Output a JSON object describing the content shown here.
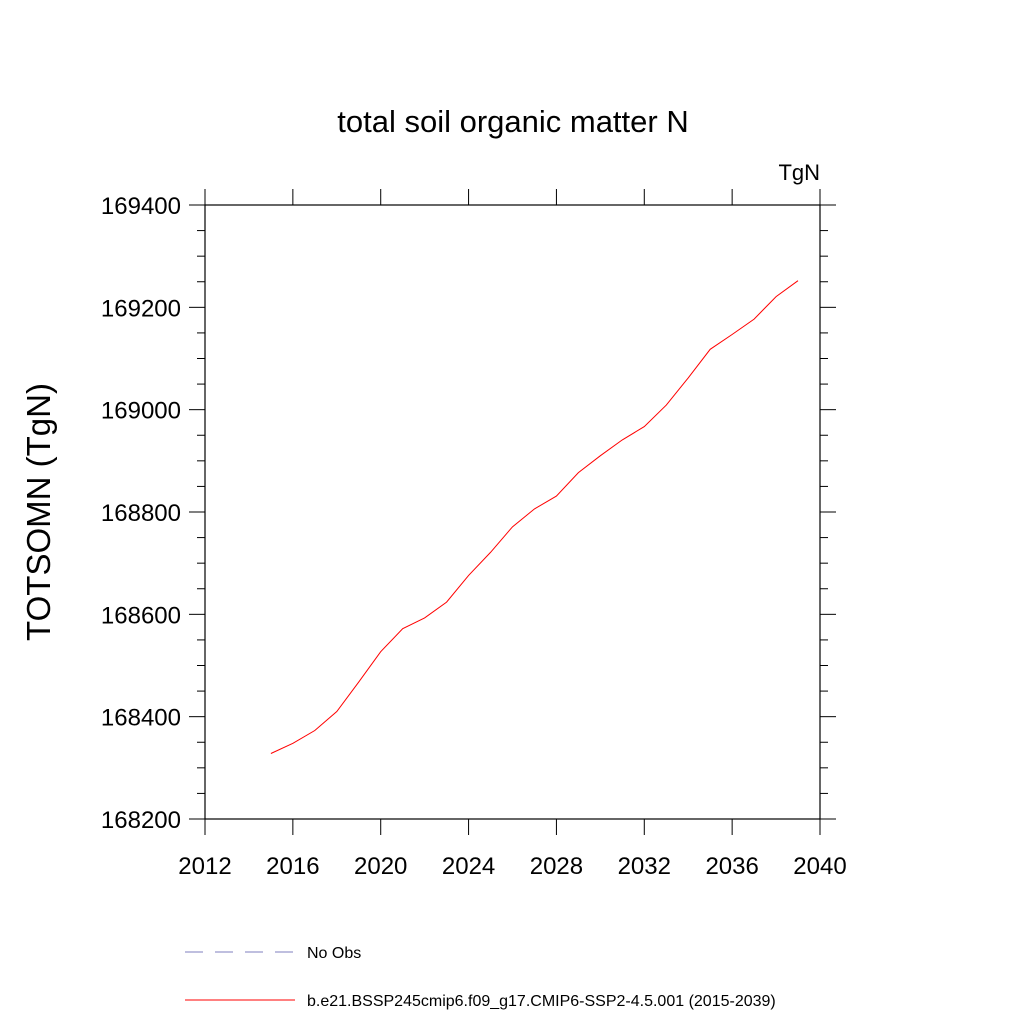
{
  "chart_data": {
    "type": "line",
    "title": "total soil organic matter N",
    "units_label": "TgN",
    "xlabel": "",
    "ylabel": "TOTSOMN  (TgN)",
    "xlim": [
      2012,
      2040
    ],
    "ylim": [
      168200,
      169400
    ],
    "x_ticks": [
      2012,
      2016,
      2020,
      2024,
      2028,
      2032,
      2036,
      2040
    ],
    "y_ticks": [
      168200,
      168400,
      168600,
      168800,
      169000,
      169200,
      169400
    ],
    "grid": false,
    "legend_position": "bottom",
    "series": [
      {
        "name": "No Obs",
        "color": "#7f7fbf",
        "dash": "dashed",
        "x": [],
        "y": []
      },
      {
        "name": "b.e21.BSSP245cmip6.f09_g17.CMIP6-SSP2-4.5.001 (2015-2039)",
        "color": "#ff0000",
        "dash": "solid",
        "x": [
          2015,
          2016,
          2017,
          2018,
          2019,
          2020,
          2021,
          2022,
          2023,
          2024,
          2025,
          2026,
          2027,
          2028,
          2029,
          2030,
          2031,
          2032,
          2033,
          2034,
          2035,
          2036,
          2037,
          2038,
          2039
        ],
        "y": [
          168328,
          168348,
          168373,
          168410,
          168468,
          168527,
          168572,
          168593,
          168624,
          168676,
          168721,
          168771,
          168806,
          168831,
          168877,
          168910,
          168941,
          168967,
          169009,
          169062,
          169118,
          169147,
          169177,
          169221,
          169252
        ]
      }
    ]
  }
}
